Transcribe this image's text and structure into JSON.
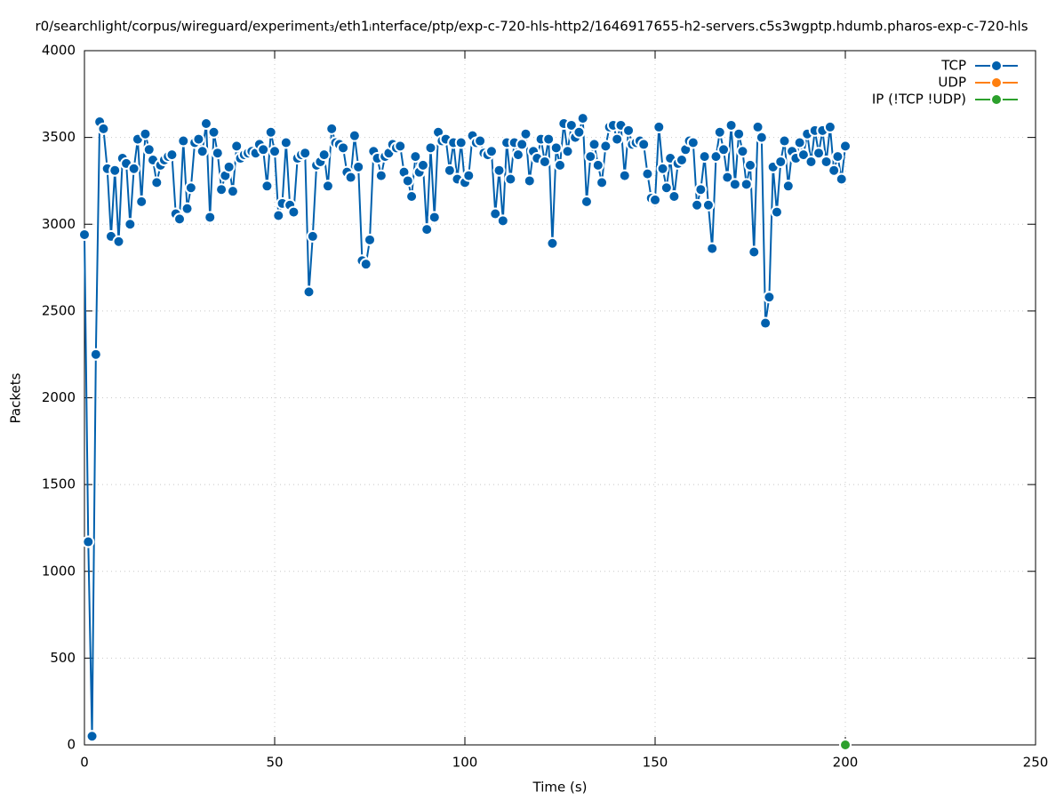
{
  "chart_data": {
    "type": "line",
    "title": "r0/searchlight/corpus/wireguard/experiment₃/eth1ᵢnterface/ptp/exp-c-720-hls-http2/1646917655-h2-servers.c5s3wgptp.hdumb.pharos-exp-c-720-hls",
    "x_label": "Time (s)",
    "y_label": "Packets",
    "xlim": [
      0,
      250
    ],
    "xticks": [
      0,
      50,
      100,
      150,
      200,
      250
    ],
    "ylim": [
      0,
      4000
    ],
    "yticks": [
      0,
      500,
      1000,
      1500,
      2000,
      2500,
      3000,
      3500,
      4000
    ],
    "grid": true,
    "legend": "top-right",
    "series": [
      {
        "name": "TCP",
        "color": "#0060ad",
        "x": [
          0,
          1,
          2,
          3,
          4,
          5,
          6,
          7,
          8,
          9,
          10,
          11,
          12,
          13,
          14,
          15,
          16,
          17,
          18,
          19,
          20,
          21,
          22,
          23,
          24,
          25,
          26,
          27,
          28,
          29,
          30,
          31,
          32,
          33,
          34,
          35,
          36,
          37,
          38,
          39,
          40,
          41,
          42,
          43,
          44,
          45,
          46,
          47,
          48,
          49,
          50,
          51,
          52,
          53,
          54,
          55,
          56,
          57,
          58,
          59,
          60,
          61,
          62,
          63,
          64,
          65,
          66,
          67,
          68,
          69,
          70,
          71,
          72,
          73,
          74,
          75,
          76,
          77,
          78,
          79,
          80,
          81,
          82,
          83,
          84,
          85,
          86,
          87,
          88,
          89,
          90,
          91,
          92,
          93,
          94,
          95,
          96,
          97,
          98,
          99,
          100,
          101,
          102,
          103,
          104,
          105,
          106,
          107,
          108,
          109,
          110,
          111,
          112,
          113,
          114,
          115,
          116,
          117,
          118,
          119,
          120,
          121,
          122,
          123,
          124,
          125,
          126,
          127,
          128,
          129,
          130,
          131,
          132,
          133,
          134,
          135,
          136,
          137,
          138,
          139,
          140,
          141,
          142,
          143,
          144,
          145,
          146,
          147,
          148,
          149,
          150,
          151,
          152,
          153,
          154,
          155,
          156,
          157,
          158,
          159,
          160,
          161,
          162,
          163,
          164,
          165,
          166,
          167,
          168,
          169,
          170,
          171,
          172,
          173,
          174,
          175,
          176,
          177,
          178,
          179,
          180,
          181,
          182,
          183,
          184,
          185,
          186,
          187,
          188,
          189,
          190,
          191,
          192,
          193,
          194,
          195,
          196,
          197,
          198,
          199,
          200
        ],
        "values": [
          2940,
          1170,
          50,
          2250,
          3590,
          3550,
          3320,
          2930,
          3310,
          2900,
          3380,
          3350,
          3000,
          3320,
          3490,
          3130,
          3520,
          3430,
          3370,
          3240,
          3340,
          3370,
          3390,
          3400,
          3060,
          3030,
          3480,
          3090,
          3210,
          3470,
          3490,
          3420,
          3580,
          3040,
          3530,
          3410,
          3200,
          3280,
          3330,
          3190,
          3450,
          3380,
          3400,
          3410,
          3420,
          3410,
          3460,
          3430,
          3220,
          3530,
          3420,
          3050,
          3120,
          3470,
          3110,
          3070,
          3380,
          3400,
          3410,
          2610,
          2930,
          3340,
          3360,
          3400,
          3220,
          3550,
          3470,
          3460,
          3440,
          3300,
          3270,
          3510,
          3330,
          2790,
          2770,
          2910,
          3420,
          3380,
          3280,
          3390,
          3410,
          3460,
          3440,
          3450,
          3300,
          3250,
          3160,
          3390,
          3300,
          3340,
          2970,
          3440,
          3040,
          3530,
          3480,
          3490,
          3310,
          3470,
          3260,
          3470,
          3240,
          3280,
          3510,
          3470,
          3480,
          3410,
          3400,
          3420,
          3060,
          3310,
          3020,
          3470,
          3260,
          3470,
          3400,
          3460,
          3520,
          3250,
          3420,
          3380,
          3490,
          3360,
          3490,
          2890,
          3440,
          3340,
          3580,
          3420,
          3570,
          3500,
          3530,
          3610,
          3130,
          3390,
          3460,
          3340,
          3240,
          3450,
          3560,
          3570,
          3490,
          3570,
          3280,
          3540,
          3460,
          3470,
          3480,
          3460,
          3290,
          3150,
          3140,
          3560,
          3320,
          3210,
          3380,
          3160,
          3350,
          3370,
          3430,
          3480,
          3470,
          3110,
          3200,
          3390,
          3110,
          2860,
          3390,
          3530,
          3430,
          3270,
          3570,
          3230,
          3520,
          3420,
          3230,
          3340,
          2840,
          3560,
          3500,
          2430,
          2580,
          3330,
          3070,
          3360,
          3480,
          3220,
          3420,
          3380,
          3470,
          3400,
          3520,
          3360,
          3540,
          3410,
          3540,
          3360,
          3560,
          3310,
          3390,
          3260,
          3450
        ]
      },
      {
        "name": "UDP",
        "color": "#ff7f0e",
        "x": [],
        "values": []
      },
      {
        "name": "IP (!TCP  !UDP)",
        "color": "#2ca02c",
        "x": [
          200
        ],
        "values": [
          0
        ]
      }
    ]
  }
}
